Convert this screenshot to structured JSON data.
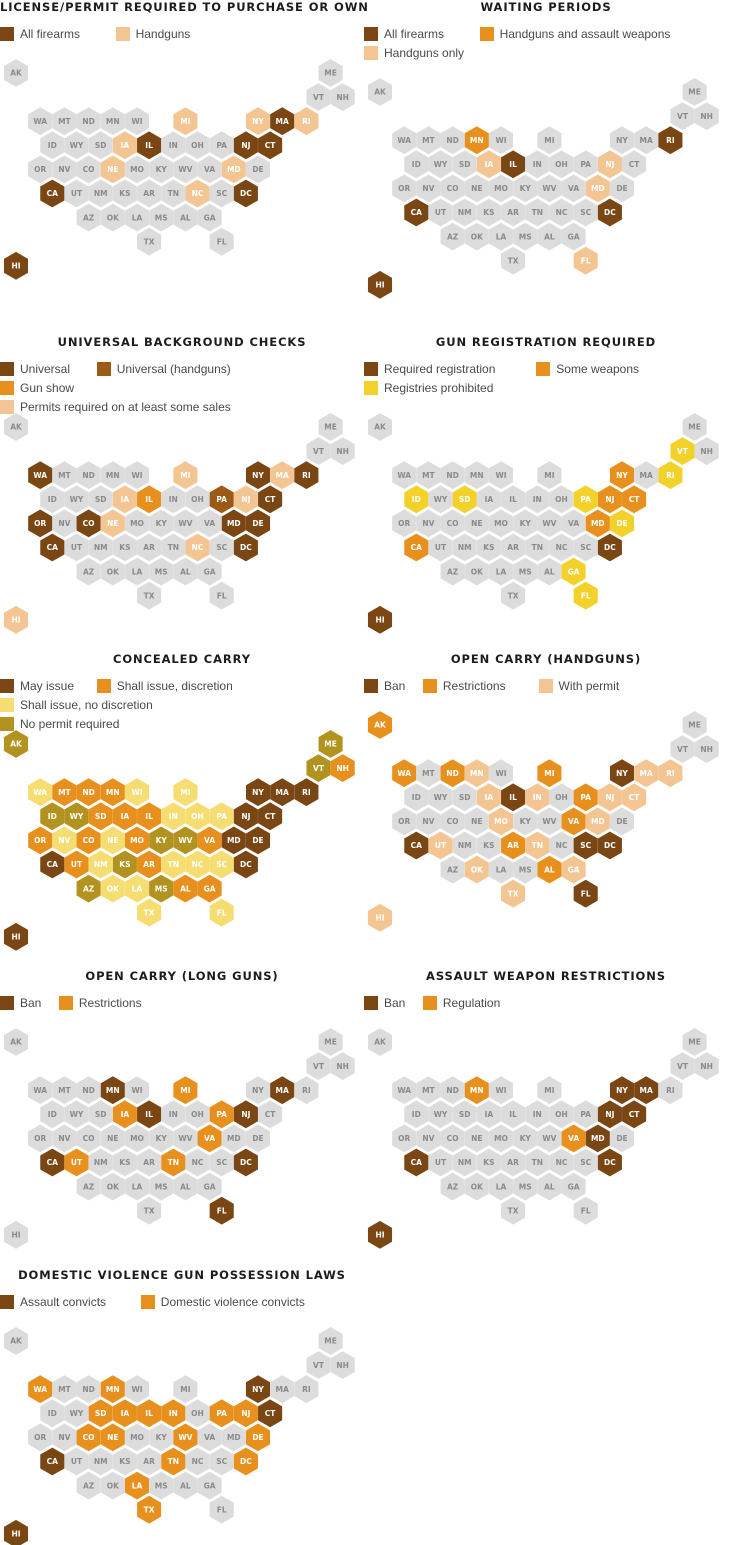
{
  "colors": {
    "none": "#dcdcdc",
    "dark": "#7a4614",
    "orange": "#e8901e",
    "light": "#f3c592",
    "yellow": "#f2d22a",
    "paleyellow": "#f6dd72",
    "olive": "#b39320",
    "label_none": "#8a8a8a",
    "label_on": "#ffffff"
  },
  "panels": [
    {
      "id": "license",
      "title": "LICENSE/PERMIT REQUIRED TO PURCHASE OR OWN",
      "legend": [
        {
          "label": "All firearms",
          "color": "dark"
        },
        {
          "label": "Handguns",
          "color": "light"
        }
      ],
      "states": {
        "IL": "dark",
        "MA": "dark",
        "NJ": "dark",
        "CT": "dark",
        "CA": "dark",
        "DC": "dark",
        "HI": "dark",
        "MI": "light",
        "NY": "light",
        "RI": "light",
        "IA": "light",
        "NE": "light",
        "NC": "light",
        "MD": "light"
      }
    },
    {
      "id": "waiting",
      "title": "WAITING PERIODS",
      "legend": [
        {
          "label": "All firearms",
          "color": "dark"
        },
        {
          "label": "Handguns and assault weapons",
          "color": "orange"
        },
        {
          "label": "Handguns only",
          "color": "light"
        }
      ],
      "states": {
        "RI": "dark",
        "IL": "dark",
        "CA": "dark",
        "DC": "dark",
        "HI": "dark",
        "MN": "orange",
        "IA": "light",
        "NJ": "light",
        "MD": "light",
        "FL": "light"
      }
    },
    {
      "id": "background",
      "title": "UNIVERSAL BACKGROUND CHECKS",
      "legend": [
        {
          "label": "Universal",
          "color": "dark"
        },
        {
          "label": "Universal (handguns)",
          "color": "brown"
        },
        {
          "label": "Gun show",
          "color": "orange"
        },
        {
          "label": "Permits required on at least some sales",
          "color": "light"
        }
      ],
      "states": {
        "WA": "dark",
        "NY": "dark",
        "RI": "dark",
        "CT": "dark",
        "OR": "dark",
        "CO": "dark",
        "MD": "dark",
        "DE": "dark",
        "CA": "dark",
        "DC": "dark",
        "PA": "brown",
        "IL": "orange",
        "MI": "light",
        "MA": "light",
        "IA": "light",
        "NJ": "light",
        "NE": "light",
        "NC": "light",
        "HI": "light"
      }
    },
    {
      "id": "registration",
      "title": "GUN REGISTRATION REQUIRED",
      "legend": [
        {
          "label": "Required registration",
          "color": "dark"
        },
        {
          "label": "Some weapons",
          "color": "orange"
        },
        {
          "label": "Registries prohibited",
          "color": "yellow"
        }
      ],
      "states": {
        "DC": "dark",
        "HI": "dark",
        "NY": "orange",
        "NJ": "orange",
        "CT": "orange",
        "MD": "orange",
        "CA": "orange",
        "VT": "yellow",
        "RI": "yellow",
        "ID": "yellow",
        "SD": "yellow",
        "PA": "yellow",
        "DE": "yellow",
        "GA": "yellow",
        "FL": "yellow"
      }
    },
    {
      "id": "concealed",
      "title": "CONCEALED CARRY",
      "legend": [
        {
          "label": "May issue",
          "color": "dark"
        },
        {
          "label": "Shall issue, discretion",
          "color": "orange"
        },
        {
          "label": "Shall issue, no discretion",
          "color": "paleyellow"
        },
        {
          "label": "No permit required",
          "color": "olive"
        }
      ],
      "states": {
        "NY": "dark",
        "MA": "dark",
        "RI": "dark",
        "NJ": "dark",
        "CT": "dark",
        "MD": "dark",
        "DE": "dark",
        "CA": "dark",
        "DC": "dark",
        "HI": "dark",
        "NH": "orange",
        "MT": "orange",
        "ND": "orange",
        "MN": "orange",
        "SD": "orange",
        "IA": "orange",
        "IL": "orange",
        "OR": "orange",
        "CO": "orange",
        "MO": "orange",
        "VA": "orange",
        "UT": "orange",
        "AR": "orange",
        "AL": "orange",
        "GA": "orange",
        "WA": "paleyellow",
        "WI": "paleyellow",
        "MI": "paleyellow",
        "IN": "paleyellow",
        "OH": "paleyellow",
        "PA": "paleyellow",
        "NV": "paleyellow",
        "NE": "paleyellow",
        "NM": "paleyellow",
        "TN": "paleyellow",
        "NC": "paleyellow",
        "SC": "paleyellow",
        "OK": "paleyellow",
        "LA": "paleyellow",
        "TX": "paleyellow",
        "FL": "paleyellow",
        "AK": "olive",
        "ME": "olive",
        "VT": "olive",
        "ID": "olive",
        "WY": "olive",
        "KY": "olive",
        "WV": "olive",
        "KS": "olive",
        "AZ": "olive",
        "MS": "olive"
      }
    },
    {
      "id": "opencarry-handguns",
      "title": "OPEN CARRY (HANDGUNS)",
      "legend": [
        {
          "label": "Ban",
          "color": "dark"
        },
        {
          "label": "Restrictions",
          "color": "orange"
        },
        {
          "label": "With permit",
          "color": "light"
        }
      ],
      "states": {
        "NY": "dark",
        "IL": "dark",
        "CA": "dark",
        "SC": "dark",
        "DC": "dark",
        "FL": "dark",
        "AK": "orange",
        "WA": "orange",
        "ND": "orange",
        "MI": "orange",
        "PA": "orange",
        "VA": "orange",
        "AR": "orange",
        "AL": "orange",
        "MN": "light",
        "MA": "light",
        "RI": "light",
        "IA": "light",
        "IN": "light",
        "NJ": "light",
        "CT": "light",
        "MO": "light",
        "MD": "light",
        "UT": "light",
        "TN": "light",
        "OK": "light",
        "GA": "light",
        "TX": "light",
        "HI": "light"
      }
    },
    {
      "id": "opencarry-longguns",
      "title": "OPEN CARRY (LONG GUNS)",
      "legend": [
        {
          "label": "Ban",
          "color": "dark"
        },
        {
          "label": "Restrictions",
          "color": "orange"
        }
      ],
      "states": {
        "MN": "dark",
        "MA": "dark",
        "IL": "dark",
        "NJ": "dark",
        "CA": "dark",
        "DC": "dark",
        "FL": "dark",
        "MI": "orange",
        "IA": "orange",
        "PA": "orange",
        "VA": "orange",
        "UT": "orange",
        "TN": "orange"
      }
    },
    {
      "id": "assault",
      "title": "ASSAULT WEAPON RESTRICTIONS",
      "legend": [
        {
          "label": "Ban",
          "color": "dark"
        },
        {
          "label": "Regulation",
          "color": "orange"
        }
      ],
      "states": {
        "NY": "dark",
        "MA": "dark",
        "NJ": "dark",
        "CT": "dark",
        "MD": "dark",
        "CA": "dark",
        "DC": "dark",
        "HI": "dark",
        "MN": "orange",
        "VA": "orange"
      }
    },
    {
      "id": "domestic",
      "title": "DOMESTIC VIOLENCE GUN POSSESSION LAWS",
      "legend": [
        {
          "label": "Assault convicts",
          "color": "dark"
        },
        {
          "label": "Domestic violence convicts",
          "color": "orange"
        }
      ],
      "states": {
        "NY": "dark",
        "CT": "dark",
        "CA": "dark",
        "HI": "dark",
        "WA": "orange",
        "MN": "orange",
        "SD": "orange",
        "IA": "orange",
        "IL": "orange",
        "IN": "orange",
        "PA": "orange",
        "NJ": "orange",
        "CO": "orange",
        "NE": "orange",
        "WV": "orange",
        "DE": "orange",
        "TN": "orange",
        "DC": "orange",
        "LA": "orange",
        "TX": "orange"
      }
    }
  ]
}
